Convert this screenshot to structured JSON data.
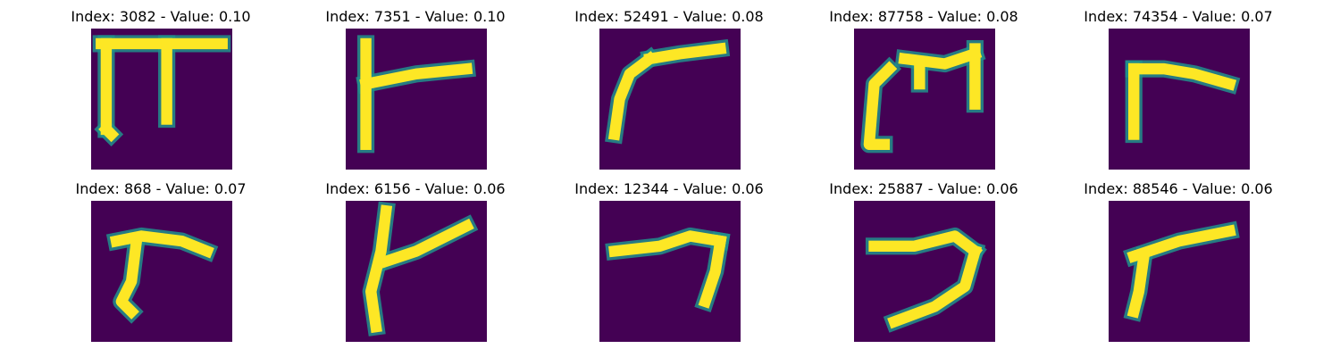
{
  "figure": {
    "background": "#ffffff",
    "image_background_color": "#440154",
    "stroke_mid_color": "#21918c",
    "stroke_high_color": "#fde725",
    "panels": [
      {
        "title": "Index: 3082 - Value: 0.10",
        "glyph": "pi-like"
      },
      {
        "title": "Index: 7351 - Value: 0.10",
        "glyph": "vertical-with-right-arm"
      },
      {
        "title": "Index: 52491 - Value: 0.08",
        "glyph": "curved-corner"
      },
      {
        "title": "Index: 87758 - Value: 0.08",
        "glyph": "open-box-with-stem"
      },
      {
        "title": "Index: 74354 - Value: 0.07",
        "glyph": "corner-r"
      },
      {
        "title": "Index: 868 - Value: 0.07",
        "glyph": "small-r"
      },
      {
        "title": "Index: 6156 - Value: 0.06",
        "glyph": "y-shape"
      },
      {
        "title": "Index: 12344 - Value: 0.06",
        "glyph": "hook-seven"
      },
      {
        "title": "Index: 25887 - Value: 0.06",
        "glyph": "reverse-c"
      },
      {
        "title": "Index: 88546 - Value: 0.06",
        "glyph": "corner-r-small"
      }
    ]
  }
}
